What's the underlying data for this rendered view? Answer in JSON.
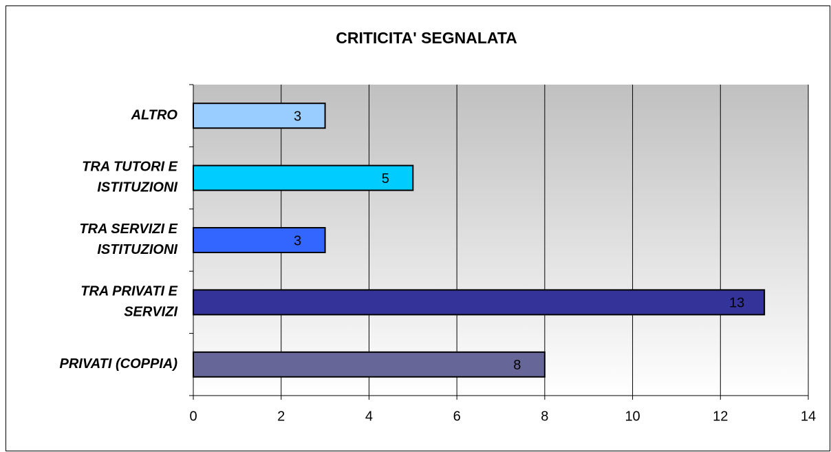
{
  "chart_data": {
    "type": "barh",
    "title": "CRITICITA' SEGNALATA",
    "categories": [
      "ALTRO",
      "TRA TUTORI E ISTITUZIONI",
      "TRA SERVIZI E ISTITUZIONI",
      "TRA PRIVATI E SERVIZI",
      "PRIVATI (COPPIA)"
    ],
    "values": [
      3,
      5,
      3,
      13,
      8
    ],
    "colors": [
      "#99ccff",
      "#00ccff",
      "#3366ff",
      "#333399",
      "#666699"
    ],
    "xlim": [
      0,
      14
    ],
    "xticks": [
      0,
      2,
      4,
      6,
      8,
      10,
      12,
      14
    ],
    "grid": true
  }
}
